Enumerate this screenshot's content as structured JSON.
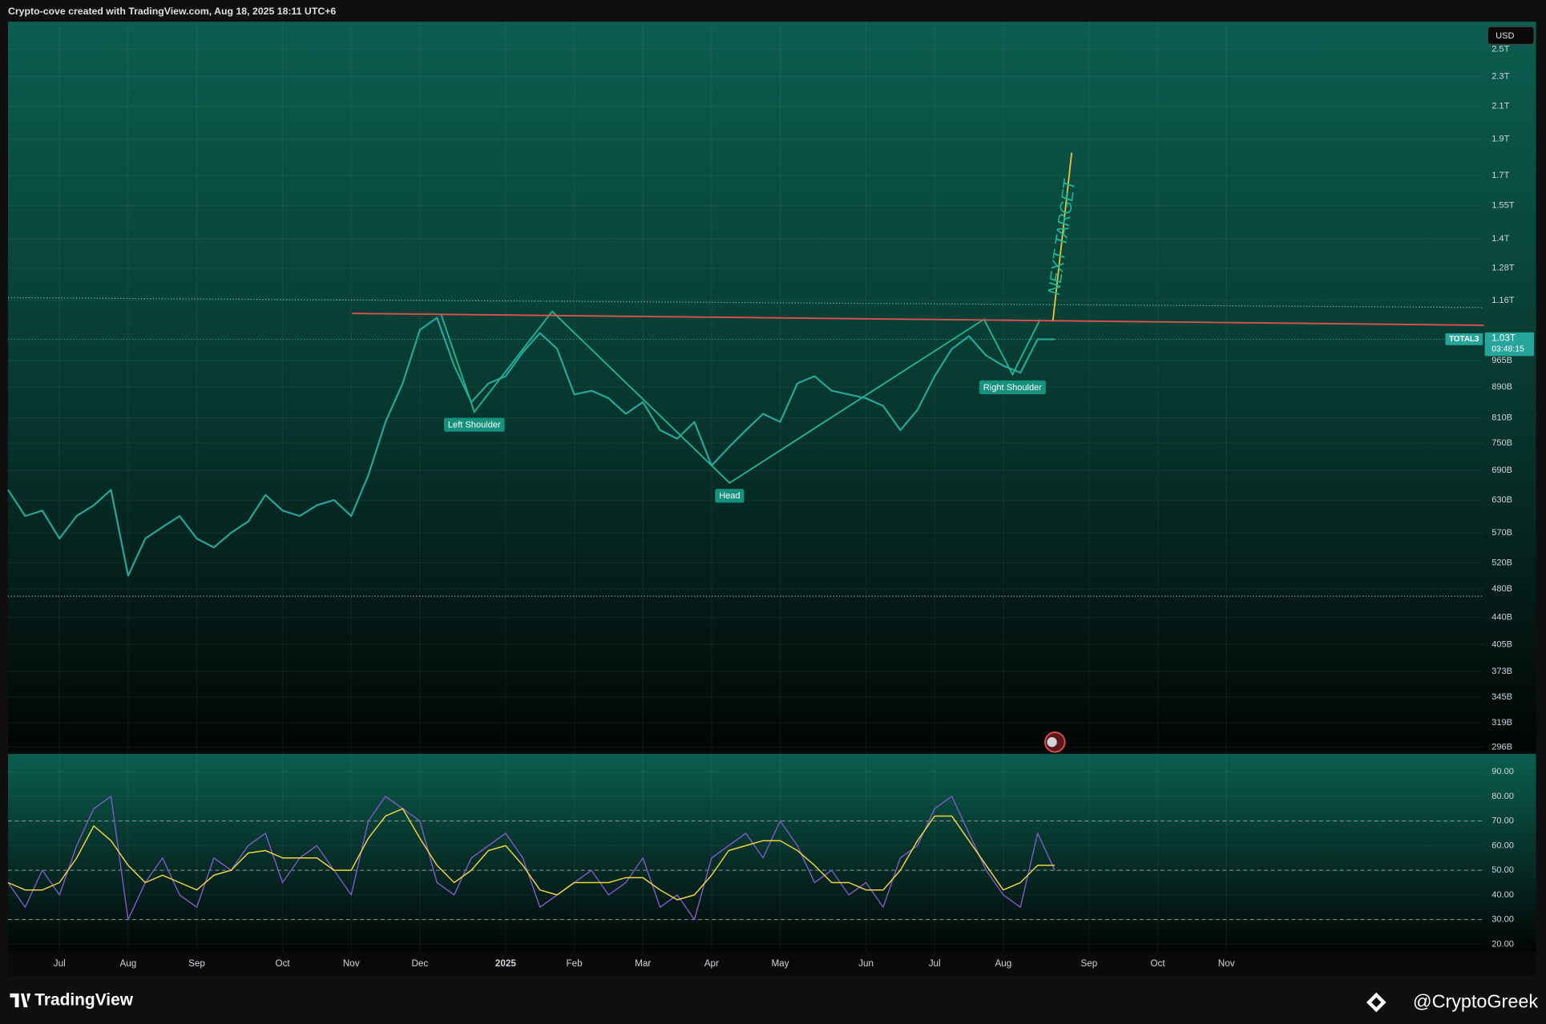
{
  "header": {
    "attribution": "Crypto-cove created with TradingView.com, Aug 18, 2025 18:11 UTC+6"
  },
  "chart_data": {
    "type": "line",
    "categories": [
      null,
      null,
      null,
      "Jul",
      null,
      null,
      null,
      "Aug",
      null,
      null,
      null,
      "Sep",
      null,
      null,
      null,
      null,
      "Oct",
      null,
      null,
      null,
      "Nov",
      null,
      null,
      null,
      "Dec",
      null,
      null,
      null,
      null,
      "2025",
      null,
      null,
      null,
      "Feb",
      null,
      null,
      null,
      "Mar",
      null,
      null,
      null,
      "Apr",
      null,
      null,
      null,
      "May",
      null,
      null,
      null,
      null,
      "Jun",
      null,
      null,
      null,
      "Jul",
      null,
      null,
      null,
      "Aug",
      null,
      null,
      null,
      null,
      "Sep",
      null,
      null,
      null,
      "Oct",
      null,
      null,
      null,
      "Nov",
      null,
      null,
      null,
      null,
      null,
      null,
      null,
      null,
      null,
      null,
      null,
      null,
      null,
      null
    ],
    "series": [
      {
        "name": "TOTAL3",
        "color": "#26a69a",
        "values": [
          650000000000,
          600000000000,
          610000000000,
          560000000000,
          600000000000,
          620000000000,
          650000000000,
          500000000000,
          560000000000,
          580000000000,
          600000000000,
          560000000000,
          545000000000,
          570000000000,
          590000000000,
          640000000000,
          610000000000,
          600000000000,
          620000000000,
          630000000000,
          600000000000,
          680000000000,
          800000000000,
          900000000000,
          1060000000000,
          1100000000000,
          950000000000,
          850000000000,
          900000000000,
          920000000000,
          990000000000,
          1050000000000,
          1000000000000,
          870000000000,
          880000000000,
          860000000000,
          820000000000,
          850000000000,
          780000000000,
          760000000000,
          800000000000,
          700000000000,
          740000000000,
          780000000000,
          820000000000,
          800000000000,
          900000000000,
          920000000000,
          880000000000,
          870000000000,
          860000000000,
          840000000000,
          780000000000,
          830000000000,
          920000000000,
          1000000000000,
          1040000000000,
          980000000000,
          950000000000,
          930000000000,
          1030000000000,
          1030000000000,
          null,
          null,
          null,
          null,
          null,
          null,
          null,
          null,
          null,
          null,
          null,
          null,
          null,
          null,
          null,
          null,
          null,
          null,
          null,
          null,
          null,
          null,
          null,
          null
        ]
      },
      {
        "color": "#7e57c2",
        "axis": "y2",
        "values": [
          45,
          35,
          50,
          40,
          60,
          75,
          80,
          30,
          45,
          55,
          40,
          35,
          55,
          50,
          60,
          65,
          45,
          55,
          60,
          50,
          40,
          70,
          80,
          75,
          70,
          45,
          40,
          55,
          60,
          65,
          55,
          35,
          40,
          45,
          50,
          40,
          45,
          55,
          35,
          40,
          30,
          55,
          60,
          65,
          55,
          70,
          60,
          45,
          50,
          40,
          45,
          35,
          55,
          60,
          75,
          80,
          65,
          50,
          40,
          35,
          65,
          50,
          null,
          null,
          null,
          null,
          null,
          null,
          null,
          null,
          null,
          null,
          null,
          null,
          null,
          null,
          null,
          null,
          null,
          null,
          null,
          null,
          null,
          null,
          null,
          null
        ]
      },
      {
        "color": "#f2d33a",
        "axis": "y2",
        "values": [
          45,
          42,
          42,
          45,
          55,
          68,
          62,
          52,
          45,
          48,
          45,
          42,
          48,
          50,
          57,
          58,
          55,
          55,
          55,
          50,
          50,
          63,
          72,
          75,
          63,
          52,
          45,
          50,
          58,
          60,
          52,
          42,
          40,
          45,
          45,
          45,
          47,
          47,
          42,
          38,
          40,
          48,
          58,
          60,
          62,
          62,
          58,
          52,
          45,
          45,
          42,
          42,
          50,
          62,
          72,
          72,
          62,
          52,
          42,
          45,
          52,
          52,
          null,
          null,
          null,
          null,
          null,
          null,
          null,
          null,
          null,
          null,
          null,
          null,
          null,
          null,
          null,
          null,
          null,
          null,
          null,
          null,
          null,
          null,
          null,
          null
        ]
      }
    ],
    "log_scale": true,
    "ylim": [
      291600000000,
      2720000000000
    ],
    "yticks": [
      {
        "value": 2500000000000,
        "label": "2.5T"
      },
      {
        "value": 2300000000000,
        "label": "2.3T"
      },
      {
        "value": 2100000000000,
        "label": "2.1T"
      },
      {
        "value": 1900000000000,
        "label": "1.9T"
      },
      {
        "value": 1700000000000,
        "label": "1.7T"
      },
      {
        "value": 1550000000000,
        "label": "1.55T"
      },
      {
        "value": 1400000000000,
        "label": "1.4T"
      },
      {
        "value": 1280000000000,
        "label": "1.28T"
      },
      {
        "value": 1160000000000,
        "label": "1.16T"
      },
      {
        "value": 965000000000,
        "label": "965B"
      },
      {
        "value": 890000000000,
        "label": "890B"
      },
      {
        "value": 810000000000,
        "label": "810B"
      },
      {
        "value": 750000000000,
        "label": "750B"
      },
      {
        "value": 690000000000,
        "label": "690B"
      },
      {
        "value": 630000000000,
        "label": "630B"
      },
      {
        "value": 570000000000,
        "label": "570B"
      },
      {
        "value": 520000000000,
        "label": "520B"
      },
      {
        "value": 480000000000,
        "label": "480B"
      },
      {
        "value": 440000000000,
        "label": "440B"
      },
      {
        "value": 405000000000,
        "label": "405B"
      },
      {
        "value": 373000000000,
        "label": "373B"
      },
      {
        "value": 345000000000,
        "label": "345B"
      },
      {
        "value": 319000000000,
        "label": "319B"
      },
      {
        "value": 296000000000,
        "label": "296B"
      }
    ],
    "y2lim": [
      16.8,
      97.2
    ],
    "y2ticks": [
      {
        "value": 90,
        "label": "90.00"
      },
      {
        "value": 80,
        "label": "80.00"
      },
      {
        "value": 70,
        "label": "70.00"
      },
      {
        "value": 60,
        "label": "60.00"
      },
      {
        "value": 50,
        "label": "50.00"
      },
      {
        "value": 40,
        "label": "40.00"
      },
      {
        "value": 30,
        "label": "30.00"
      },
      {
        "value": 20,
        "label": "20.00"
      }
    ],
    "y2_levels": [
      70,
      50,
      30
    ],
    "grid": true,
    "currency": "USD",
    "last_value": {
      "value": 1030000000000,
      "label": "1.03T"
    },
    "countdown": "03:48:15",
    "annotations": [
      "Left Shoulder",
      "Head",
      "Right Shoulder",
      "NEXT TARGET"
    ]
  },
  "footer": {
    "brand": "TradingView",
    "watermark": "@CryptoGreek"
  }
}
